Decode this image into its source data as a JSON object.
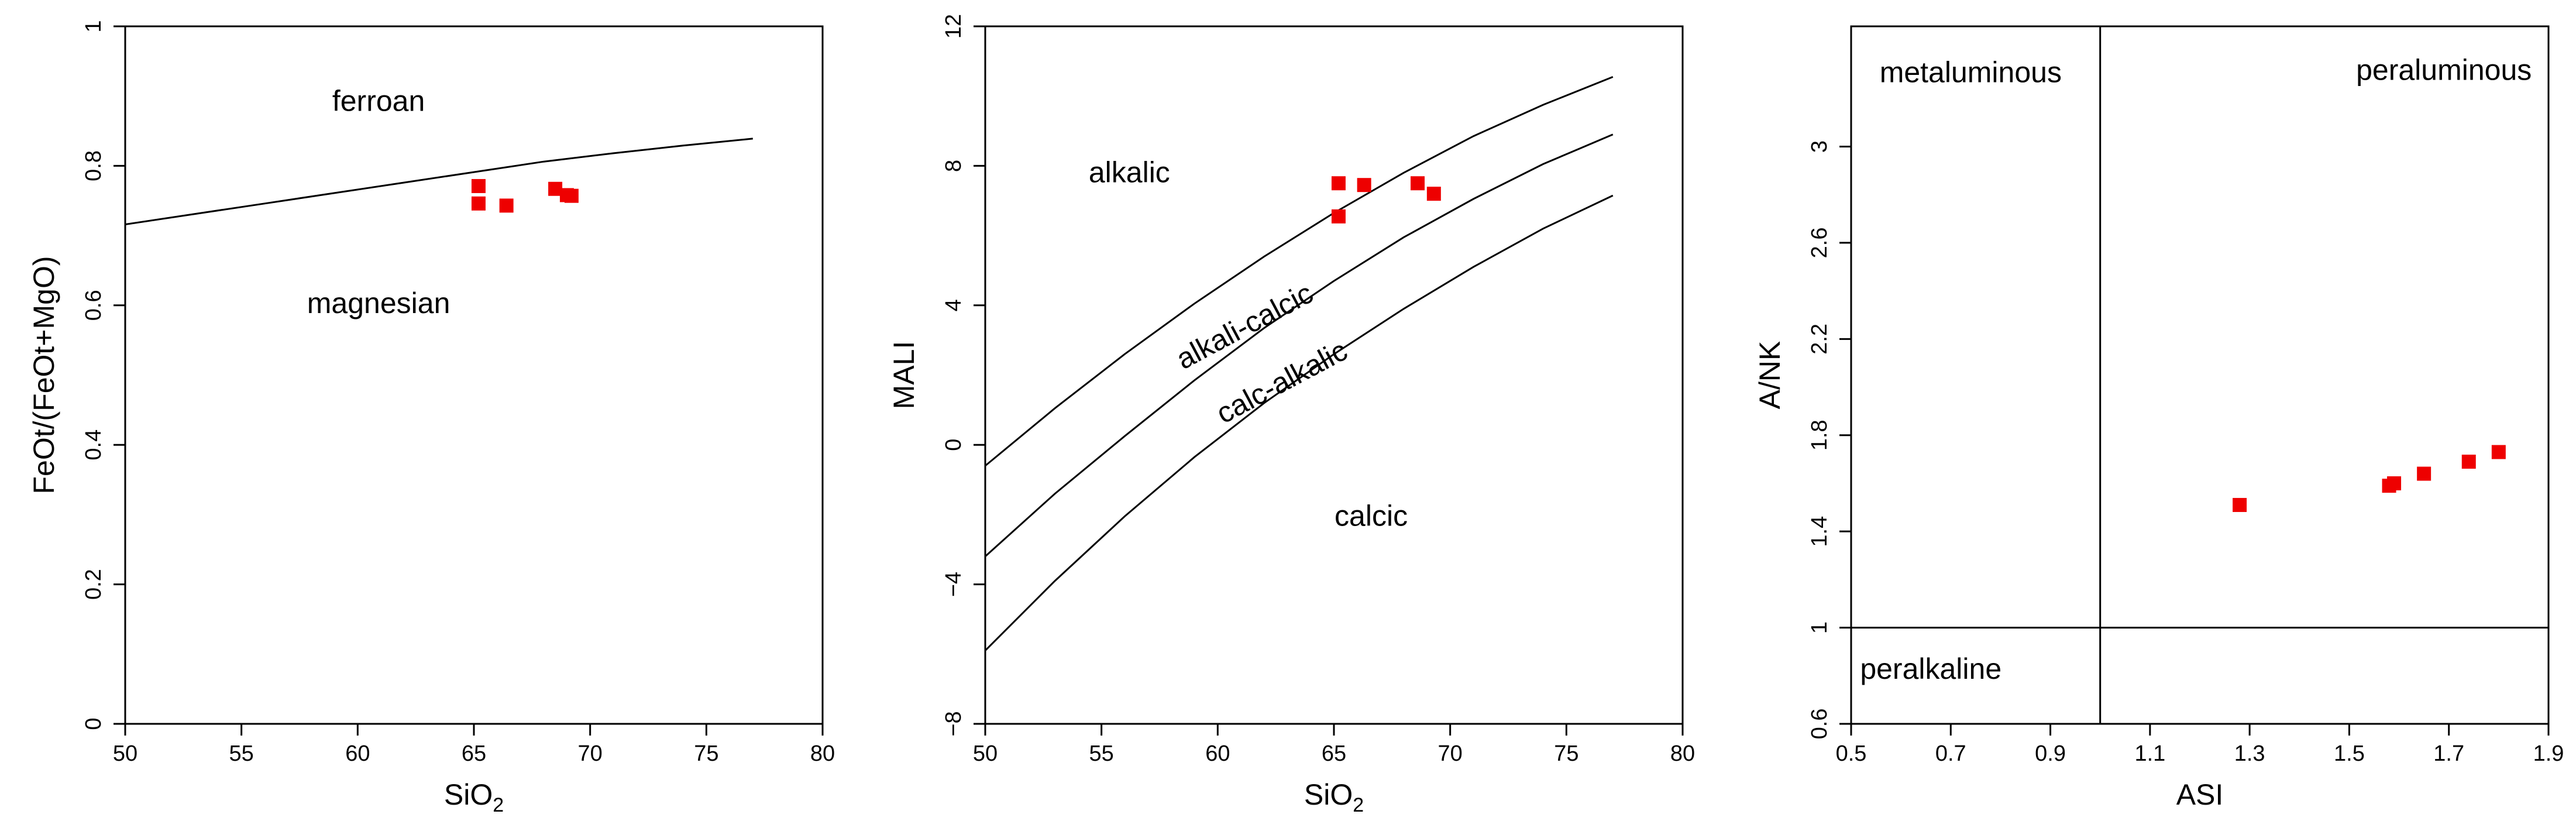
{
  "colors": {
    "point": "#ee0000",
    "line": "#000000",
    "background": "#ffffff"
  },
  "chart_data": [
    {
      "id": "feo-plot",
      "type": "scatter",
      "xlabel_main": "SiO",
      "xlabel_sub": "2",
      "ylabel": "FeOt/(FeOt+MgO)",
      "xlim": [
        50,
        80
      ],
      "ylim": [
        0,
        1
      ],
      "xticks": [
        50,
        55,
        60,
        65,
        70,
        75,
        80
      ],
      "xtick_labels": [
        "50",
        "55",
        "60",
        "65",
        "70",
        "75",
        "80"
      ],
      "yticks": [
        0,
        0.2,
        0.4,
        0.6,
        0.8,
        1
      ],
      "ytick_labels": [
        "0",
        "0.2",
        "0.4",
        "0.6",
        "0.8",
        "1"
      ],
      "grid": false,
      "boundaries": [
        {
          "x": [
            50,
            53,
            56,
            59,
            62,
            65,
            68,
            71,
            74,
            77
          ],
          "y": [
            0.716,
            0.731,
            0.746,
            0.761,
            0.776,
            0.791,
            0.806,
            0.818,
            0.829,
            0.839
          ]
        }
      ],
      "regions": [
        {
          "text": "ferroan",
          "x": 60.9,
          "y": 0.89
        },
        {
          "text": "magnesian",
          "x": 60.9,
          "y": 0.6
        }
      ],
      "points": {
        "x": [
          65.2,
          65.2,
          66.4,
          68.5,
          69.0,
          69.2
        ],
        "y": [
          0.771,
          0.746,
          0.743,
          0.767,
          0.758,
          0.757
        ]
      }
    },
    {
      "id": "mali-plot",
      "type": "scatter",
      "xlabel_main": "SiO",
      "xlabel_sub": "2",
      "ylabel": "MALI",
      "xlim": [
        50,
        80
      ],
      "ylim": [
        -8,
        12
      ],
      "xticks": [
        50,
        55,
        60,
        65,
        70,
        75,
        80
      ],
      "xtick_labels": [
        "50",
        "55",
        "60",
        "65",
        "70",
        "75",
        "80"
      ],
      "yticks": [
        -8,
        -4,
        0,
        4,
        8,
        12
      ],
      "ytick_labels": [
        "−8",
        "−4",
        "0",
        "4",
        "8",
        "12"
      ],
      "grid": false,
      "boundaries": [
        {
          "x": [
            50,
            53,
            56,
            59,
            62,
            65,
            68,
            71,
            74,
            77
          ],
          "y": [
            -0.6,
            1.05,
            2.6,
            4.05,
            5.4,
            6.65,
            7.8,
            8.85,
            9.75,
            10.55
          ]
        },
        {
          "x": [
            50,
            53,
            56,
            59,
            62,
            65,
            68,
            71,
            74,
            77
          ],
          "y": [
            -3.2,
            -1.4,
            0.25,
            1.85,
            3.35,
            4.7,
            5.95,
            7.05,
            8.05,
            8.9
          ]
        },
        {
          "x": [
            50,
            53,
            56,
            59,
            62,
            65,
            68,
            71,
            74,
            77
          ],
          "y": [
            -5.9,
            -3.9,
            -2.05,
            -0.35,
            1.2,
            2.6,
            3.9,
            5.1,
            6.2,
            7.15
          ]
        }
      ],
      "regions": [
        {
          "text": "alkalic",
          "x": 56.2,
          "y": 7.75,
          "rotate": 0
        },
        {
          "text": "alkali-calcic",
          "x": 61.2,
          "y": 3.35,
          "rotate": -28
        },
        {
          "text": "calc-alkalic",
          "x": 62.8,
          "y": 1.75,
          "rotate": -28
        },
        {
          "text": "calcic",
          "x": 66.6,
          "y": -2.1,
          "rotate": 0
        }
      ],
      "points": {
        "x": [
          65.2,
          65.2,
          66.3,
          68.6,
          69.3
        ],
        "y": [
          7.5,
          6.55,
          7.45,
          7.5,
          7.2
        ]
      }
    },
    {
      "id": "asi-plot",
      "type": "scatter",
      "xlabel_main": "ASI",
      "xlabel_sub": "",
      "ylabel": "A/NK",
      "xlim": [
        0.5,
        1.9
      ],
      "ylim": [
        0.6,
        3.5
      ],
      "xticks": [
        0.5,
        0.7,
        0.9,
        1.1,
        1.3,
        1.5,
        1.7,
        1.9
      ],
      "xtick_labels": [
        "0.5",
        "0.7",
        "0.9",
        "1.1",
        "1.3",
        "1.5",
        "1.7",
        "1.9"
      ],
      "yticks": [
        0.6,
        1.0,
        1.4,
        1.8,
        2.2,
        2.6,
        3.0
      ],
      "ytick_labels": [
        "0.6",
        "1",
        "1.4",
        "1.8",
        "2.2",
        "2.6",
        "3"
      ],
      "grid": false,
      "boundaries": [
        {
          "x": [
            1.0,
            1.0
          ],
          "y": [
            0.6,
            3.5
          ]
        },
        {
          "x": [
            0.5,
            1.9
          ],
          "y": [
            1.0,
            1.0
          ]
        }
      ],
      "regions": [
        {
          "text": "metaluminous",
          "x": 0.74,
          "y": 3.3
        },
        {
          "text": "peraluminous",
          "x": 1.69,
          "y": 3.31
        },
        {
          "text": "peralkaline",
          "x": 0.66,
          "y": 0.82
        }
      ],
      "points": {
        "x": [
          1.28,
          1.58,
          1.59,
          1.65,
          1.74,
          1.8
        ],
        "y": [
          1.51,
          1.59,
          1.6,
          1.64,
          1.69,
          1.73
        ]
      }
    }
  ]
}
